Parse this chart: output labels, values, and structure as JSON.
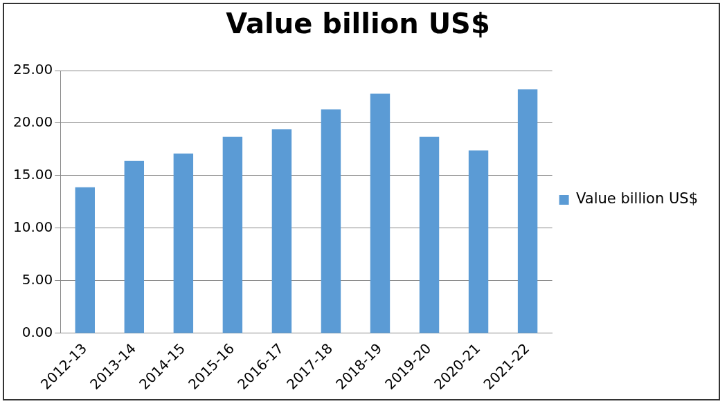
{
  "chart_data": {
    "type": "bar",
    "title": "Value billion US$",
    "categories": [
      "2012-13",
      "2013-14",
      "2014-15",
      "2015-16",
      "2016-17",
      "2017-18",
      "2018-19",
      "2019-20",
      "2020-21",
      "2021-22"
    ],
    "series": [
      {
        "name": "Value billion US$",
        "color": "#5b9bd5",
        "values": [
          13.9,
          16.4,
          17.1,
          18.7,
          19.4,
          21.3,
          22.8,
          18.7,
          17.4,
          23.2
        ]
      }
    ],
    "ylim": [
      0,
      25
    ],
    "yticks": [
      {
        "value": 0,
        "label": "0.00"
      },
      {
        "value": 5,
        "label": "5.00"
      },
      {
        "value": 10,
        "label": "10.00"
      },
      {
        "value": 15,
        "label": "15.00"
      },
      {
        "value": 20,
        "label": "20.00"
      },
      {
        "value": 25,
        "label": "25.00"
      }
    ],
    "grid": "y",
    "legend": "right"
  }
}
